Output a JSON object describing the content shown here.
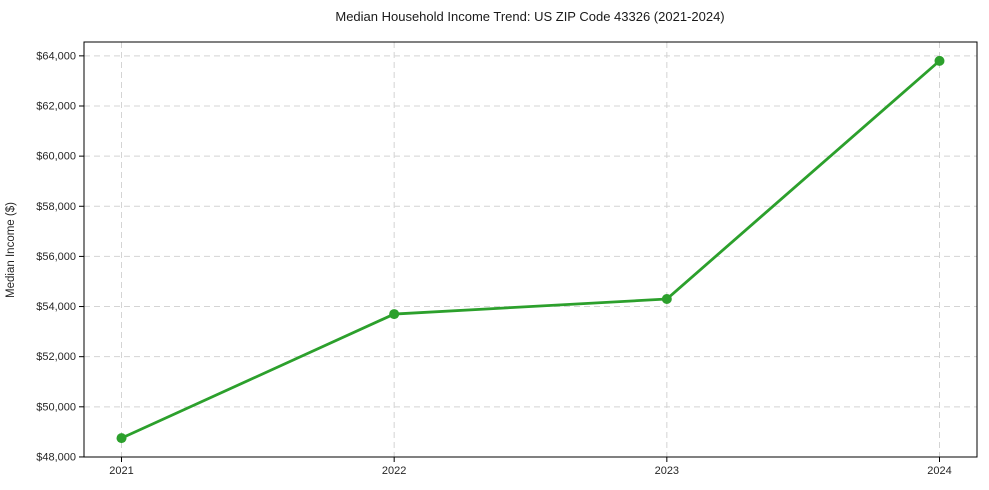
{
  "chart_data": {
    "type": "line",
    "title": "Median Household Income Trend: US ZIP Code 43326 (2021-2024)",
    "xlabel": "",
    "ylabel": "Median Income ($)",
    "categories": [
      "2021",
      "2022",
      "2023",
      "2024"
    ],
    "series": [
      {
        "values": [
          48750,
          53700,
          54300,
          63800
        ],
        "color": "#2ca02c"
      }
    ],
    "yticks": [
      48000,
      50000,
      52000,
      54000,
      56000,
      58000,
      60000,
      62000,
      64000
    ],
    "ytick_labels": [
      "$48,000",
      "$50,000",
      "$52,000",
      "$54,000",
      "$56,000",
      "$58,000",
      "$60,000",
      "$62,000",
      "$64,000"
    ],
    "ylim": [
      47998,
      64553
    ],
    "grid": true,
    "grid_style": "dashed",
    "legend_position": "none",
    "colors": {
      "line": "#2ca02c",
      "marker": "#2ca02c",
      "grid": "#d4d4d4",
      "axis": "#000000",
      "text": "#262626"
    }
  }
}
